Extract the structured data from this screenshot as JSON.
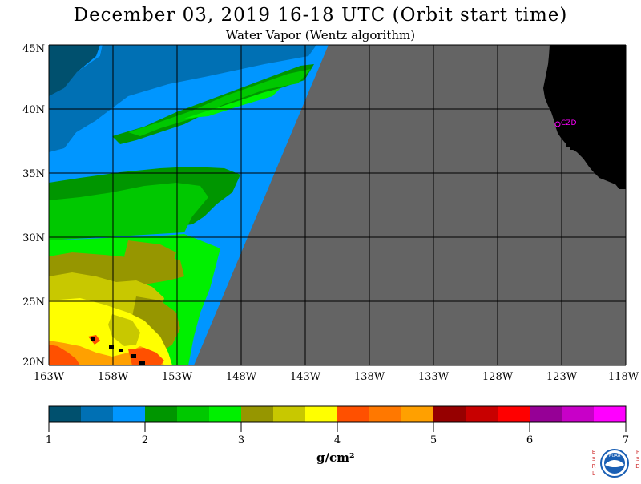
{
  "title": "December 03, 2019  16-18 UTC  (Orbit start time)",
  "subtitle": "Water Vapor (Wentz algorithm)",
  "map": {
    "lat_labels": [
      "45N",
      "40N",
      "35N",
      "30N",
      "25N",
      "20N"
    ],
    "lon_labels": [
      "163W",
      "158W",
      "153W",
      "148W",
      "143W",
      "138W",
      "133W",
      "128W",
      "123W",
      "118W"
    ],
    "station_label": "CZD",
    "no_data_color": "#646464",
    "land_color": "#000000",
    "station_color": "#ff00ff"
  },
  "colorbar": {
    "colors": [
      "#00506e",
      "#0070b4",
      "#0096ff",
      "#009600",
      "#00c800",
      "#00f000",
      "#969600",
      "#c8c800",
      "#ffff00",
      "#ff5000",
      "#ff7800",
      "#ffa000",
      "#960000",
      "#c80000",
      "#ff0000",
      "#960096",
      "#c800c8",
      "#ff00ff"
    ],
    "tick_labels": [
      "1",
      "2",
      "3",
      "4",
      "5",
      "6",
      "7"
    ],
    "units": "g/cm²"
  },
  "logo": {
    "left_letters": [
      "E",
      "S",
      "R",
      "L"
    ],
    "right_letters": [
      "P",
      "S",
      "D"
    ],
    "text": "NOAA"
  }
}
